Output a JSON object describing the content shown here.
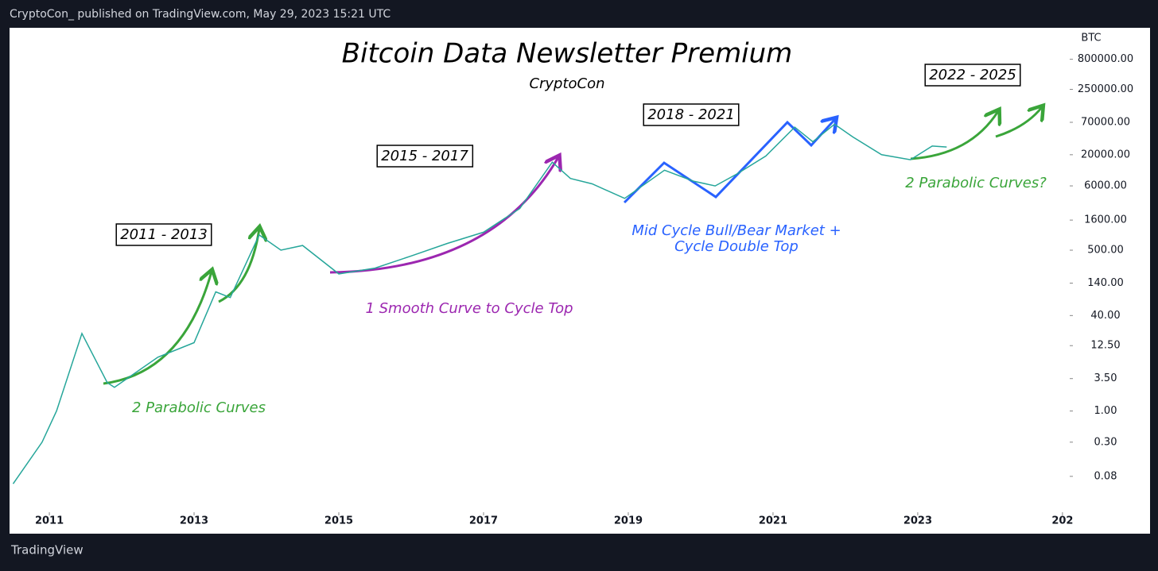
{
  "header": "CryptoCon_ published on TradingView.com, May 29, 2023 15:21 UTC",
  "footer": "TradingView",
  "chart_data": {
    "type": "line",
    "title": "Bitcoin Data Newsletter Premium",
    "subtitle": "CryptoCon",
    "y_unit": "BTC",
    "log_scale": true,
    "x": [
      2010.5,
      2010.9,
      2011.1,
      2011.45,
      2011.8,
      2011.9,
      2012.5,
      2013.0,
      2013.3,
      2013.5,
      2013.9,
      2014.2,
      2014.5,
      2015.0,
      2015.5,
      2016.0,
      2016.5,
      2017.0,
      2017.5,
      2017.95,
      2018.2,
      2018.5,
      2018.95,
      2019.5,
      2019.9,
      2020.2,
      2020.5,
      2020.9,
      2021.3,
      2021.55,
      2021.85,
      2022.1,
      2022.5,
      2022.9,
      2023.2,
      2023.4
    ],
    "series": [
      {
        "name": "BTC",
        "color": "#26a69a",
        "values": [
          0.06,
          0.3,
          1,
          20,
          3,
          2.5,
          8,
          14,
          100,
          80,
          900,
          500,
          600,
          200,
          250,
          400,
          650,
          1000,
          2500,
          15000,
          8000,
          6500,
          3700,
          11000,
          7200,
          6000,
          9500,
          19000,
          58000,
          33000,
          65000,
          40000,
          20000,
          16500,
          28000,
          27000
        ]
      }
    ],
    "xlim": [
      2010.45,
      2025.1
    ],
    "ylim": [
      0.02,
      2700000
    ],
    "xticks": [
      2011,
      2013,
      2015,
      2017,
      2019,
      2021,
      2023,
      {
        "value": 2025,
        "label": "202"
      }
    ],
    "yticks": [
      {
        "value": 800000,
        "label": "800000.00"
      },
      {
        "value": 250000,
        "label": "250000.00"
      },
      {
        "value": 70000,
        "label": "70000.00"
      },
      {
        "value": 20000,
        "label": "20000.00"
      },
      {
        "value": 6000,
        "label": "6000.00"
      },
      {
        "value": 1600,
        "label": "1600.00"
      },
      {
        "value": 500,
        "label": "500.00"
      },
      {
        "value": 140,
        "label": "140.00"
      },
      {
        "value": 40,
        "label": "40.00"
      },
      {
        "value": 12.5,
        "label": "12.50"
      },
      {
        "value": 3.5,
        "label": "3.50"
      },
      {
        "value": 1,
        "label": "1.00"
      },
      {
        "value": 0.3,
        "label": "0.30"
      },
      {
        "value": 0.08,
        "label": "0.08"
      }
    ],
    "annotations": [
      {
        "text": "2011 - 2013",
        "color": "#000000",
        "boxed": true
      },
      {
        "text": "2015 - 2017",
        "color": "#000000",
        "boxed": true
      },
      {
        "text": "2018 - 2021",
        "color": "#000000",
        "boxed": true
      },
      {
        "text": "2022 - 2025",
        "color": "#000000",
        "boxed": true
      },
      {
        "text": "2 Parabolic Curves",
        "color": "#3aa53a",
        "boxed": false
      },
      {
        "text": "1 Smooth Curve to Cycle Top",
        "color": "#9c27b0",
        "boxed": false
      },
      {
        "text": "Mid Cycle Bull/Bear Market +",
        "color": "#2962ff",
        "boxed": false
      },
      {
        "text": "Cycle Double Top",
        "color": "#2962ff",
        "boxed": false
      },
      {
        "text": "2 Parabolic Curves?",
        "color": "#3aa53a",
        "boxed": false
      }
    ]
  }
}
